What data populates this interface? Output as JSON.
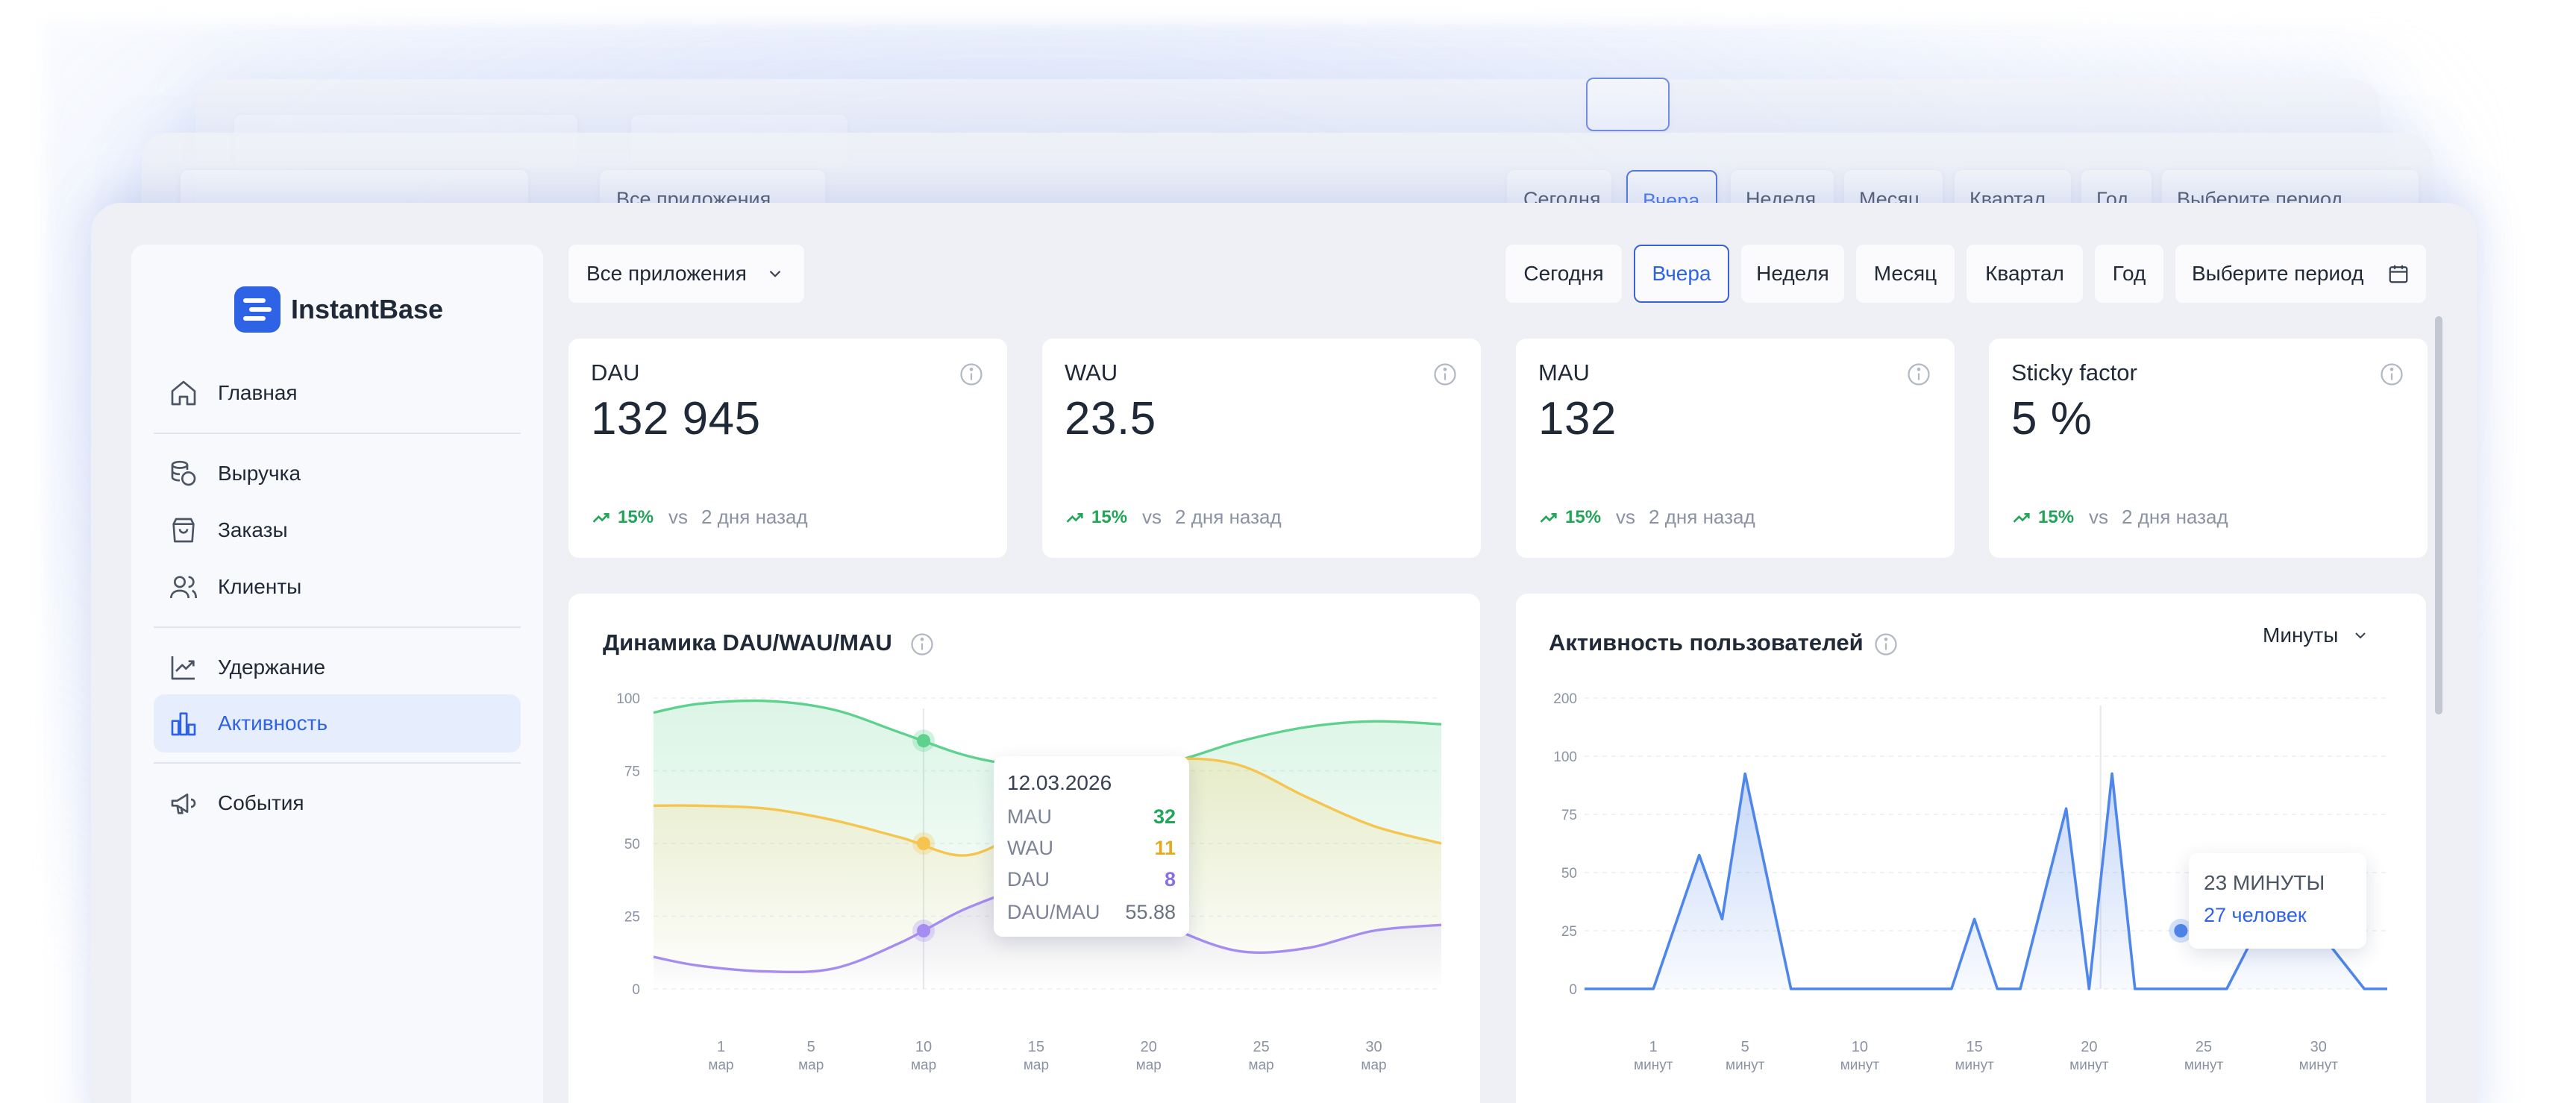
{
  "app": {
    "name": "InstantBase"
  },
  "app_select": {
    "label": "Все приложения"
  },
  "periods": [
    "Сегодня",
    "Вчера",
    "Неделя",
    "Месяц",
    "Квартал",
    "Год",
    "Выберите период"
  ],
  "active_period": "Вчера",
  "sidebar": {
    "items": [
      {
        "label": "Главная",
        "icon": "home-icon"
      },
      {
        "label": "Выручка",
        "icon": "coins-icon"
      },
      {
        "label": "Заказы",
        "icon": "shopping-bag-icon"
      },
      {
        "label": "Клиенты",
        "icon": "users-icon"
      },
      {
        "label": "Удержание",
        "icon": "trend-up-icon"
      },
      {
        "label": "Активность",
        "icon": "bar-chart-icon"
      },
      {
        "label": "События",
        "icon": "megaphone-icon"
      }
    ],
    "active": "Активность"
  },
  "kpis": [
    {
      "title": "DAU",
      "value": "132 945",
      "change": "15%",
      "vs": "vs",
      "since": "2 дня назад"
    },
    {
      "title": "WAU",
      "value": "23.5",
      "change": "15%",
      "vs": "vs",
      "since": "2 дня назад"
    },
    {
      "title": "MAU",
      "value": "132",
      "change": "15%",
      "vs": "vs",
      "since": "2 дня назад"
    },
    {
      "title": "Sticky factor",
      "value": "5 %",
      "change": "15%",
      "vs": "vs",
      "since": "2 дня назад"
    }
  ],
  "colors": {
    "accent": "#2f63e6",
    "positive": "#22a559",
    "mau": "#5fd18f",
    "wau": "#f5c54f",
    "dau": "#a48cf0",
    "activity": "#4f86ea"
  },
  "chart_data": [
    {
      "type": "line",
      "title": "Динамика DAU/WAU/MAU",
      "x": [
        1,
        5,
        10,
        15,
        20,
        25,
        30
      ],
      "x_tick_labels": [
        {
          "d": "1",
          "m": "мар"
        },
        {
          "d": "5",
          "m": "мар"
        },
        {
          "d": "10",
          "m": "мар"
        },
        {
          "d": "15",
          "m": "мар"
        },
        {
          "d": "20",
          "m": "мар"
        },
        {
          "d": "25",
          "m": "мар"
        },
        {
          "d": "30",
          "m": "мар"
        }
      ],
      "y_ticks": [
        "0",
        "25",
        "50",
        "75",
        "100"
      ],
      "ylim": [
        0,
        100
      ],
      "xlim": [
        -2,
        33
      ],
      "series": [
        {
          "name": "MAU",
          "x": [
            -2,
            0,
            3,
            6,
            9,
            12,
            15,
            18,
            21,
            24,
            27,
            30,
            33
          ],
          "values": [
            95,
            98,
            99,
            96,
            88,
            80,
            76,
            75,
            78,
            85,
            90,
            92,
            91
          ]
        },
        {
          "name": "WAU",
          "x": [
            -2,
            0,
            3,
            6,
            9,
            12,
            15,
            18,
            21,
            24,
            27,
            30,
            33
          ],
          "values": [
            63,
            63,
            62,
            58,
            52,
            46,
            58,
            74,
            79,
            77,
            66,
            56,
            50
          ]
        },
        {
          "name": "DAU",
          "x": [
            -2,
            0,
            3,
            6,
            9,
            12,
            15,
            18,
            21,
            24,
            27,
            30,
            33
          ],
          "values": [
            11,
            8,
            6,
            7,
            16,
            28,
            35,
            32,
            21,
            13,
            14,
            20,
            22
          ]
        }
      ],
      "tooltip": {
        "date": "12.03.2026",
        "x": 10,
        "rows": [
          {
            "label": "MAU",
            "value": "32"
          },
          {
            "label": "WAU",
            "value": "11"
          },
          {
            "label": "DAU",
            "value": "8"
          },
          {
            "label": "DAU/MAU",
            "value": "55.88"
          }
        ]
      }
    },
    {
      "type": "area",
      "title": "Активность пользователей",
      "unit_select": "Минуты",
      "x": [
        1,
        5,
        10,
        15,
        20,
        25,
        30
      ],
      "x_tick_labels": [
        {
          "d": "1",
          "m": "минут"
        },
        {
          "d": "5",
          "m": "минут"
        },
        {
          "d": "10",
          "m": "минут"
        },
        {
          "d": "15",
          "m": "минут"
        },
        {
          "d": "20",
          "m": "минут"
        },
        {
          "d": "25",
          "m": "минут"
        },
        {
          "d": "30",
          "m": "минут"
        }
      ],
      "y_ticks": [
        "0",
        "25",
        "50",
        "75",
        "100",
        "200"
      ],
      "xlim": [
        -2,
        33
      ],
      "series": [
        {
          "name": "activity",
          "x": [
            -2,
            1,
            3,
            4,
            5,
            7,
            14,
            15,
            16,
            17,
            19,
            20,
            21,
            22,
            23,
            24,
            26,
            29,
            30,
            32,
            33
          ],
          "levels": [
            0,
            0,
            2.3,
            1.2,
            3.7,
            0,
            0,
            1.2,
            0,
            0,
            3.1,
            0,
            3.7,
            0,
            0,
            0,
            0,
            2.3,
            1.0,
            0,
            0
          ]
        }
      ],
      "tooltip": {
        "x": 24,
        "title": "23 МИНУТЫ",
        "value": "27 человек"
      }
    }
  ]
}
